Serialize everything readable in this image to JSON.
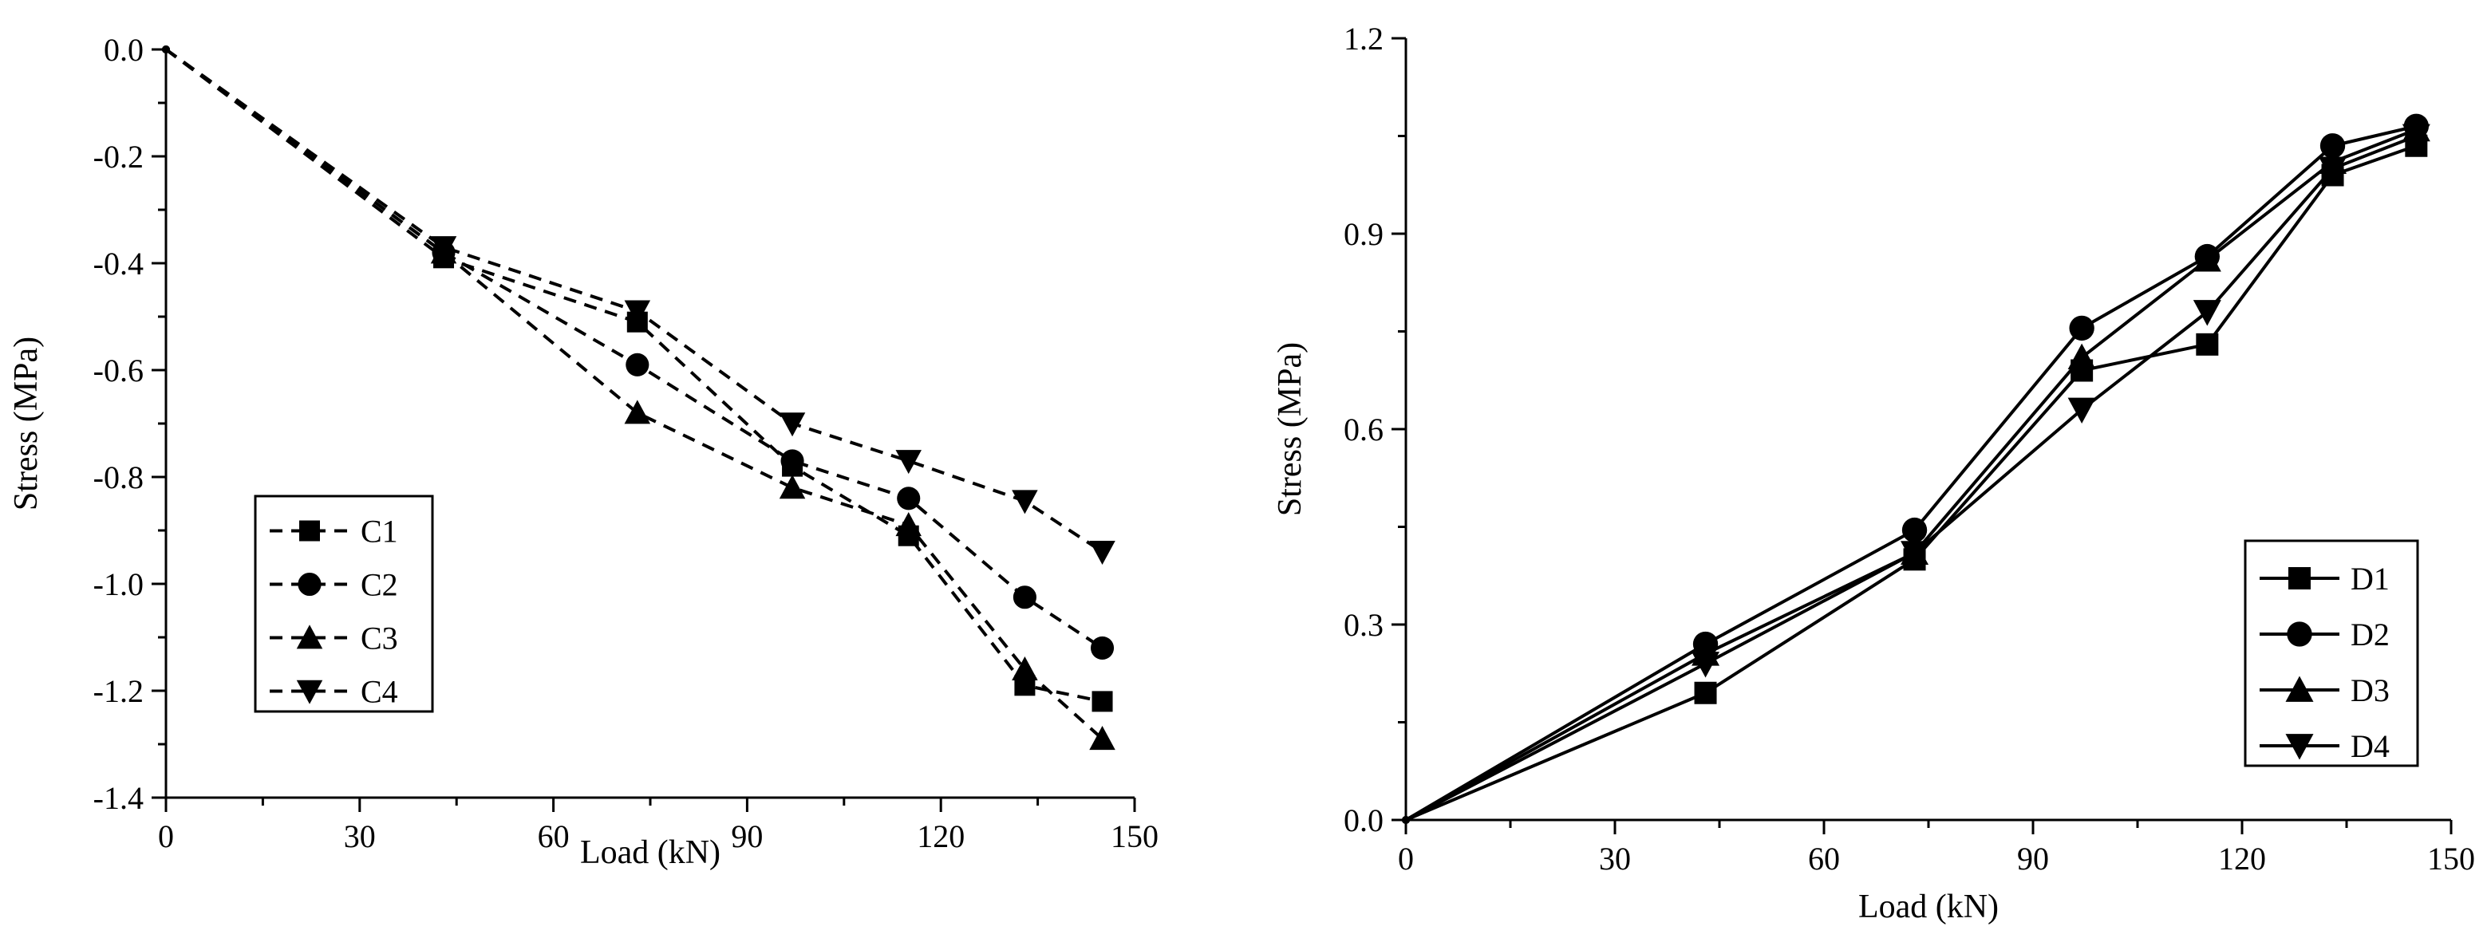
{
  "chart_data": [
    {
      "type": "line",
      "xlabel": "Load (kN)",
      "ylabel": "Stress (MPa)",
      "xlim": [
        0,
        150
      ],
      "ylim": [
        -1.4,
        0.0
      ],
      "xticks": [
        0,
        30,
        60,
        90,
        120,
        150
      ],
      "xtick_labels": [
        "0",
        "30",
        "60",
        "90",
        "120",
        "150"
      ],
      "yticks": [
        0.0,
        -0.2,
        -0.4,
        -0.6,
        -0.8,
        -1.0,
        -1.2,
        -1.4
      ],
      "ytick_labels": [
        "0.0",
        "-0.2",
        "-0.4",
        "-0.6",
        "-0.8",
        "-1.0",
        "-1.2",
        "-1.4"
      ],
      "line_style": "dashed",
      "legend_position": "lower-left",
      "grid": false,
      "x": [
        0,
        43,
        73,
        97,
        115,
        133,
        145
      ],
      "series": [
        {
          "name": "C1",
          "marker": "square",
          "values": [
            0.0,
            -0.39,
            -0.51,
            -0.78,
            -0.91,
            -1.19,
            -1.22
          ]
        },
        {
          "name": "C2",
          "marker": "circle",
          "values": [
            0.0,
            -0.38,
            -0.59,
            -0.77,
            -0.84,
            -1.025,
            -1.12
          ]
        },
        {
          "name": "C3",
          "marker": "triangle-up",
          "values": [
            0.0,
            -0.38,
            -0.68,
            -0.82,
            -0.89,
            -1.16,
            -1.29
          ]
        },
        {
          "name": "C4",
          "marker": "triangle-down",
          "values": [
            0.0,
            -0.37,
            -0.49,
            -0.7,
            -0.77,
            -0.845,
            -0.94
          ]
        }
      ]
    },
    {
      "type": "line",
      "xlabel": "Load (kN)",
      "ylabel": "Stress (MPa)",
      "xlim": [
        0,
        150
      ],
      "ylim": [
        0.0,
        1.2
      ],
      "xticks": [
        0,
        30,
        60,
        90,
        120,
        150
      ],
      "xtick_labels": [
        "0",
        "30",
        "60",
        "90",
        "120",
        "150"
      ],
      "yticks": [
        0.0,
        0.3,
        0.6,
        0.9,
        1.2
      ],
      "ytick_labels": [
        "0.0",
        "0.3",
        "0.6",
        "0.9",
        "1.2"
      ],
      "line_style": "solid",
      "legend_position": "lower-right",
      "grid": false,
      "x": [
        0,
        43,
        73,
        97,
        115,
        133,
        145
      ],
      "series": [
        {
          "name": "D1",
          "marker": "square",
          "values": [
            0.0,
            0.195,
            0.4,
            0.69,
            0.73,
            0.99,
            1.035
          ]
        },
        {
          "name": "D2",
          "marker": "circle",
          "values": [
            0.0,
            0.27,
            0.445,
            0.755,
            0.865,
            1.035,
            1.065
          ]
        },
        {
          "name": "D3",
          "marker": "triangle-up",
          "values": [
            0.0,
            0.255,
            0.41,
            0.71,
            0.86,
            1.01,
            1.06
          ]
        },
        {
          "name": "D4",
          "marker": "triangle-down",
          "values": [
            0.0,
            0.24,
            0.41,
            0.63,
            0.78,
            1.0,
            1.05
          ]
        }
      ]
    }
  ]
}
